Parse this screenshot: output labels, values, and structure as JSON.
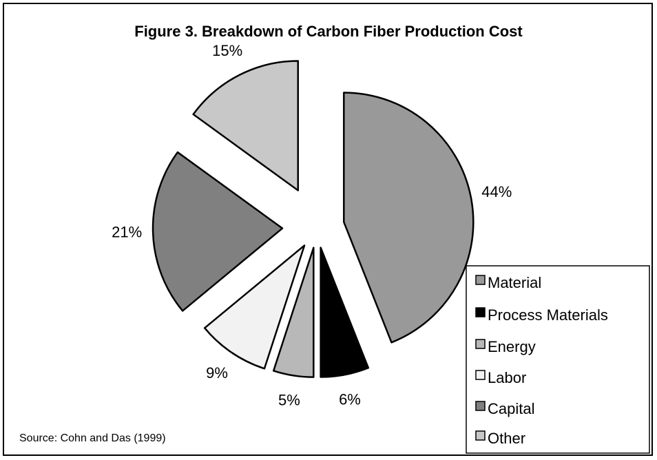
{
  "chart_data": {
    "type": "pie",
    "title": "Figure 3. Breakdown of Carbon Fiber Production Cost",
    "categories": [
      "Material",
      "Process Materials",
      "Energy",
      "Labor",
      "Capital",
      "Other"
    ],
    "values": [
      44,
      6,
      5,
      9,
      21,
      15
    ],
    "value_labels": [
      "44%",
      "6%",
      "5%",
      "9%",
      "21%",
      "15%"
    ],
    "colors": [
      "#999999",
      "#000000",
      "#b8b8b8",
      "#f2f2f2",
      "#808080",
      "#c8c8c8"
    ],
    "legend": "lower right",
    "source": "Source: Cohn and Das  (1999)"
  }
}
